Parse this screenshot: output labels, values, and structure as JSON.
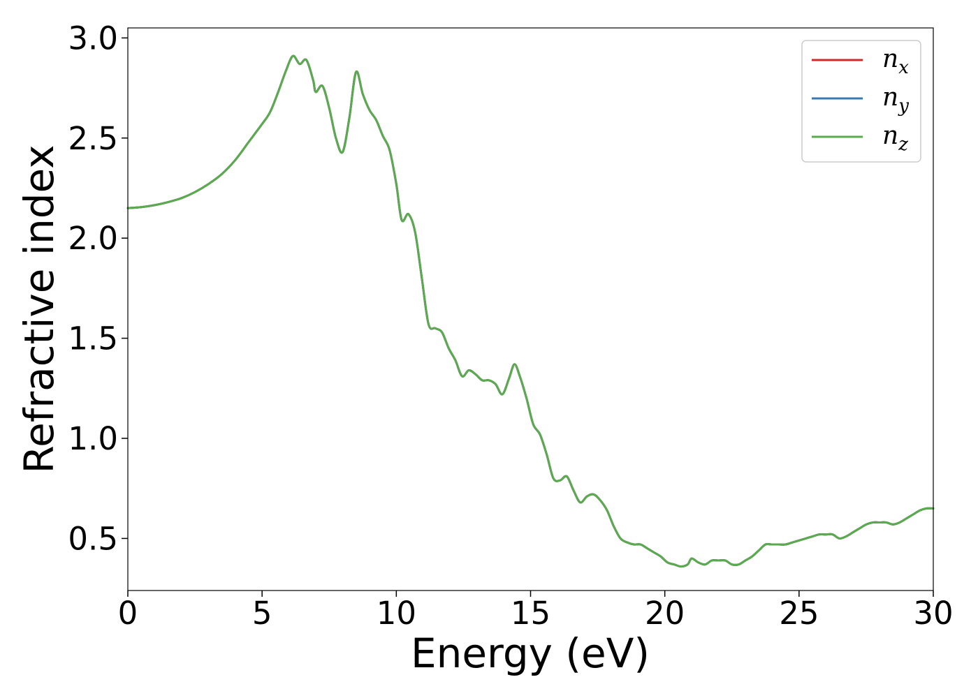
{
  "chart_data": {
    "type": "line",
    "title": "",
    "xlabel": "Energy (eV)",
    "ylabel": "Refractive index",
    "xlim": [
      0,
      30
    ],
    "ylim": [
      0.24,
      3.05
    ],
    "xticks": [
      0,
      5,
      10,
      15,
      20,
      25,
      30
    ],
    "xtick_labels": [
      "0",
      "5",
      "10",
      "15",
      "20",
      "25",
      "30"
    ],
    "yticks": [
      0.5,
      1.0,
      1.5,
      2.0,
      2.5,
      3.0
    ],
    "ytick_labels": [
      "0.5",
      "1.0",
      "1.5",
      "2.0",
      "2.5",
      "3.0"
    ],
    "grid": false,
    "legend_position": "top-right",
    "colors": {
      "n_x": "#d62728",
      "n_y": "#3a78b0",
      "n_z": "#5aab4d"
    },
    "series": [
      {
        "name": "n_x",
        "legend_base": "n",
        "legend_sub": "x",
        "x": [
          0,
          0.5,
          1,
          1.5,
          2,
          2.5,
          3,
          3.5,
          4,
          4.5,
          5,
          5.3,
          5.6,
          5.9,
          6.15,
          6.4,
          6.65,
          6.9,
          7.0,
          7.25,
          7.5,
          7.75,
          8.0,
          8.25,
          8.5,
          8.75,
          9.0,
          9.25,
          9.5,
          9.75,
          10.0,
          10.2,
          10.45,
          10.7,
          10.95,
          11.2,
          11.45,
          11.7,
          11.95,
          12.2,
          12.45,
          12.7,
          12.95,
          13.2,
          13.45,
          13.7,
          13.95,
          14.2,
          14.4,
          14.6,
          14.85,
          15.1,
          15.35,
          15.6,
          15.85,
          16.1,
          16.35,
          16.6,
          16.85,
          17.1,
          17.35,
          17.6,
          17.85,
          18.1,
          18.35,
          18.6,
          18.85,
          19.1,
          19.35,
          19.6,
          19.85,
          20.1,
          20.35,
          20.6,
          20.85,
          21.0,
          21.25,
          21.5,
          21.75,
          22.0,
          22.25,
          22.5,
          22.75,
          23.0,
          23.25,
          23.5,
          23.75,
          24.0,
          24.25,
          24.5,
          24.75,
          25.0,
          25.25,
          25.5,
          25.75,
          26.0,
          26.25,
          26.5,
          26.75,
          27.0,
          27.25,
          27.5,
          27.75,
          28.0,
          28.25,
          28.5,
          28.75,
          29.0,
          29.25,
          29.5,
          29.75,
          30.0
        ],
        "y": [
          2.15,
          2.155,
          2.165,
          2.18,
          2.2,
          2.23,
          2.27,
          2.32,
          2.39,
          2.48,
          2.57,
          2.63,
          2.73,
          2.84,
          2.91,
          2.87,
          2.89,
          2.79,
          2.73,
          2.76,
          2.65,
          2.5,
          2.43,
          2.6,
          2.83,
          2.72,
          2.64,
          2.59,
          2.51,
          2.44,
          2.27,
          2.09,
          2.12,
          2.03,
          1.8,
          1.57,
          1.55,
          1.53,
          1.45,
          1.39,
          1.31,
          1.34,
          1.32,
          1.29,
          1.29,
          1.27,
          1.22,
          1.3,
          1.37,
          1.31,
          1.2,
          1.07,
          1.02,
          0.92,
          0.8,
          0.79,
          0.81,
          0.74,
          0.68,
          0.71,
          0.72,
          0.69,
          0.64,
          0.56,
          0.5,
          0.48,
          0.47,
          0.47,
          0.45,
          0.43,
          0.41,
          0.38,
          0.37,
          0.36,
          0.37,
          0.4,
          0.38,
          0.37,
          0.39,
          0.39,
          0.39,
          0.37,
          0.37,
          0.39,
          0.41,
          0.44,
          0.47,
          0.47,
          0.47,
          0.47,
          0.48,
          0.49,
          0.5,
          0.51,
          0.52,
          0.52,
          0.52,
          0.5,
          0.51,
          0.53,
          0.55,
          0.57,
          0.58,
          0.58,
          0.58,
          0.57,
          0.58,
          0.6,
          0.62,
          0.64,
          0.65,
          0.65
        ]
      },
      {
        "name": "n_y",
        "legend_base": "n",
        "legend_sub": "y",
        "x": [
          0,
          0.5,
          1,
          1.5,
          2,
          2.5,
          3,
          3.5,
          4,
          4.5,
          5,
          5.3,
          5.6,
          5.9,
          6.15,
          6.4,
          6.65,
          6.9,
          7.0,
          7.25,
          7.5,
          7.75,
          8.0,
          8.25,
          8.5,
          8.75,
          9.0,
          9.25,
          9.5,
          9.75,
          10.0,
          10.2,
          10.45,
          10.7,
          10.95,
          11.2,
          11.45,
          11.7,
          11.95,
          12.2,
          12.45,
          12.7,
          12.95,
          13.2,
          13.45,
          13.7,
          13.95,
          14.2,
          14.4,
          14.6,
          14.85,
          15.1,
          15.35,
          15.6,
          15.85,
          16.1,
          16.35,
          16.6,
          16.85,
          17.1,
          17.35,
          17.6,
          17.85,
          18.1,
          18.35,
          18.6,
          18.85,
          19.1,
          19.35,
          19.6,
          19.85,
          20.1,
          20.35,
          20.6,
          20.85,
          21.0,
          21.25,
          21.5,
          21.75,
          22.0,
          22.25,
          22.5,
          22.75,
          23.0,
          23.25,
          23.5,
          23.75,
          24.0,
          24.25,
          24.5,
          24.75,
          25.0,
          25.25,
          25.5,
          25.75,
          26.0,
          26.25,
          26.5,
          26.75,
          27.0,
          27.25,
          27.5,
          27.75,
          28.0,
          28.25,
          28.5,
          28.75,
          29.0,
          29.25,
          29.5,
          29.75,
          30.0
        ],
        "y": [
          2.15,
          2.155,
          2.165,
          2.18,
          2.2,
          2.23,
          2.27,
          2.32,
          2.39,
          2.48,
          2.57,
          2.63,
          2.73,
          2.84,
          2.91,
          2.87,
          2.89,
          2.79,
          2.73,
          2.76,
          2.65,
          2.5,
          2.43,
          2.6,
          2.83,
          2.72,
          2.64,
          2.59,
          2.51,
          2.44,
          2.27,
          2.09,
          2.12,
          2.03,
          1.8,
          1.57,
          1.55,
          1.53,
          1.45,
          1.39,
          1.31,
          1.34,
          1.32,
          1.29,
          1.29,
          1.27,
          1.22,
          1.3,
          1.37,
          1.31,
          1.2,
          1.07,
          1.02,
          0.92,
          0.8,
          0.79,
          0.81,
          0.74,
          0.68,
          0.71,
          0.72,
          0.69,
          0.64,
          0.56,
          0.5,
          0.48,
          0.47,
          0.47,
          0.45,
          0.43,
          0.41,
          0.38,
          0.37,
          0.36,
          0.37,
          0.4,
          0.38,
          0.37,
          0.39,
          0.39,
          0.39,
          0.37,
          0.37,
          0.39,
          0.41,
          0.44,
          0.47,
          0.47,
          0.47,
          0.47,
          0.48,
          0.49,
          0.5,
          0.51,
          0.52,
          0.52,
          0.52,
          0.5,
          0.51,
          0.53,
          0.55,
          0.57,
          0.58,
          0.58,
          0.58,
          0.57,
          0.58,
          0.6,
          0.62,
          0.64,
          0.65,
          0.65
        ]
      },
      {
        "name": "n_z",
        "legend_base": "n",
        "legend_sub": "z",
        "x": [
          0,
          0.5,
          1,
          1.5,
          2,
          2.5,
          3,
          3.5,
          4,
          4.5,
          5,
          5.3,
          5.6,
          5.9,
          6.15,
          6.4,
          6.65,
          6.9,
          7.0,
          7.25,
          7.5,
          7.75,
          8.0,
          8.25,
          8.5,
          8.75,
          9.0,
          9.25,
          9.5,
          9.75,
          10.0,
          10.2,
          10.45,
          10.7,
          10.95,
          11.2,
          11.45,
          11.7,
          11.95,
          12.2,
          12.45,
          12.7,
          12.95,
          13.2,
          13.45,
          13.7,
          13.95,
          14.2,
          14.4,
          14.6,
          14.85,
          15.1,
          15.35,
          15.6,
          15.85,
          16.1,
          16.35,
          16.6,
          16.85,
          17.1,
          17.35,
          17.6,
          17.85,
          18.1,
          18.35,
          18.6,
          18.85,
          19.1,
          19.35,
          19.6,
          19.85,
          20.1,
          20.35,
          20.6,
          20.85,
          21.0,
          21.25,
          21.5,
          21.75,
          22.0,
          22.25,
          22.5,
          22.75,
          23.0,
          23.25,
          23.5,
          23.75,
          24.0,
          24.25,
          24.5,
          24.75,
          25.0,
          25.25,
          25.5,
          25.75,
          26.0,
          26.25,
          26.5,
          26.75,
          27.0,
          27.25,
          27.5,
          27.75,
          28.0,
          28.25,
          28.5,
          28.75,
          29.0,
          29.25,
          29.5,
          29.75,
          30.0
        ],
        "y": [
          2.15,
          2.155,
          2.165,
          2.18,
          2.2,
          2.23,
          2.27,
          2.32,
          2.39,
          2.48,
          2.57,
          2.63,
          2.73,
          2.84,
          2.91,
          2.87,
          2.89,
          2.79,
          2.73,
          2.76,
          2.65,
          2.5,
          2.43,
          2.6,
          2.83,
          2.72,
          2.64,
          2.59,
          2.51,
          2.44,
          2.27,
          2.09,
          2.12,
          2.03,
          1.8,
          1.57,
          1.55,
          1.53,
          1.45,
          1.39,
          1.31,
          1.34,
          1.32,
          1.29,
          1.29,
          1.27,
          1.22,
          1.3,
          1.37,
          1.31,
          1.2,
          1.07,
          1.02,
          0.92,
          0.8,
          0.79,
          0.81,
          0.74,
          0.68,
          0.71,
          0.72,
          0.69,
          0.64,
          0.56,
          0.5,
          0.48,
          0.47,
          0.47,
          0.45,
          0.43,
          0.41,
          0.38,
          0.37,
          0.36,
          0.37,
          0.4,
          0.38,
          0.37,
          0.39,
          0.39,
          0.39,
          0.37,
          0.37,
          0.39,
          0.41,
          0.44,
          0.47,
          0.47,
          0.47,
          0.47,
          0.48,
          0.49,
          0.5,
          0.51,
          0.52,
          0.52,
          0.52,
          0.5,
          0.51,
          0.53,
          0.55,
          0.57,
          0.58,
          0.58,
          0.58,
          0.57,
          0.58,
          0.6,
          0.62,
          0.64,
          0.65,
          0.65
        ]
      }
    ]
  }
}
